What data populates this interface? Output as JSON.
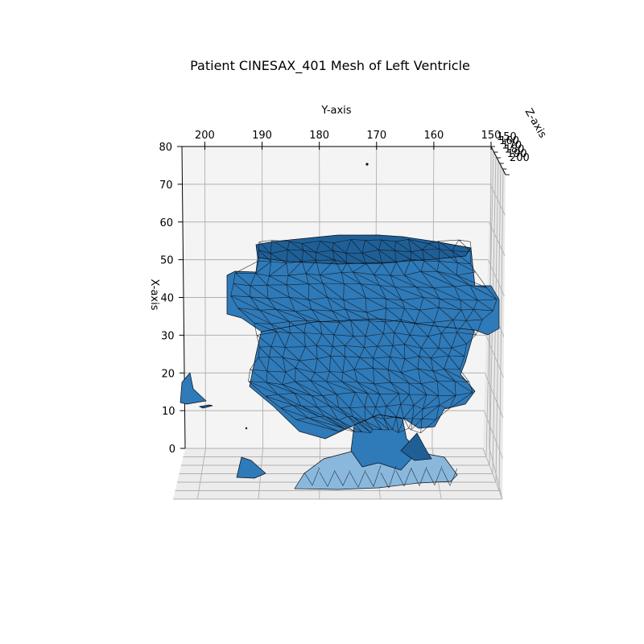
{
  "chart_data": {
    "type": "surface3d",
    "title": "Patient CINESAX_401 Mesh of Left Ventricle",
    "xlabel": "X-axis",
    "ylabel": "Y-axis",
    "zlabel": "Z-axis",
    "x_ticks": [
      "0",
      "10",
      "20",
      "30",
      "40",
      "50",
      "60",
      "70",
      "80"
    ],
    "y_ticks": [
      "200",
      "190",
      "180",
      "170",
      "160",
      "150"
    ],
    "z_ticks": [
      "150",
      "160",
      "170",
      "180",
      "190",
      "200"
    ],
    "xlim": [
      0,
      80
    ],
    "ylim": [
      204,
      150
    ],
    "zlim": [
      150,
      200
    ],
    "grid": true,
    "colors": {
      "face": "#2f7ab8",
      "edge": "#0a0f18",
      "pane": "#f2f2f2",
      "grid": "#b0b0b0"
    }
  }
}
